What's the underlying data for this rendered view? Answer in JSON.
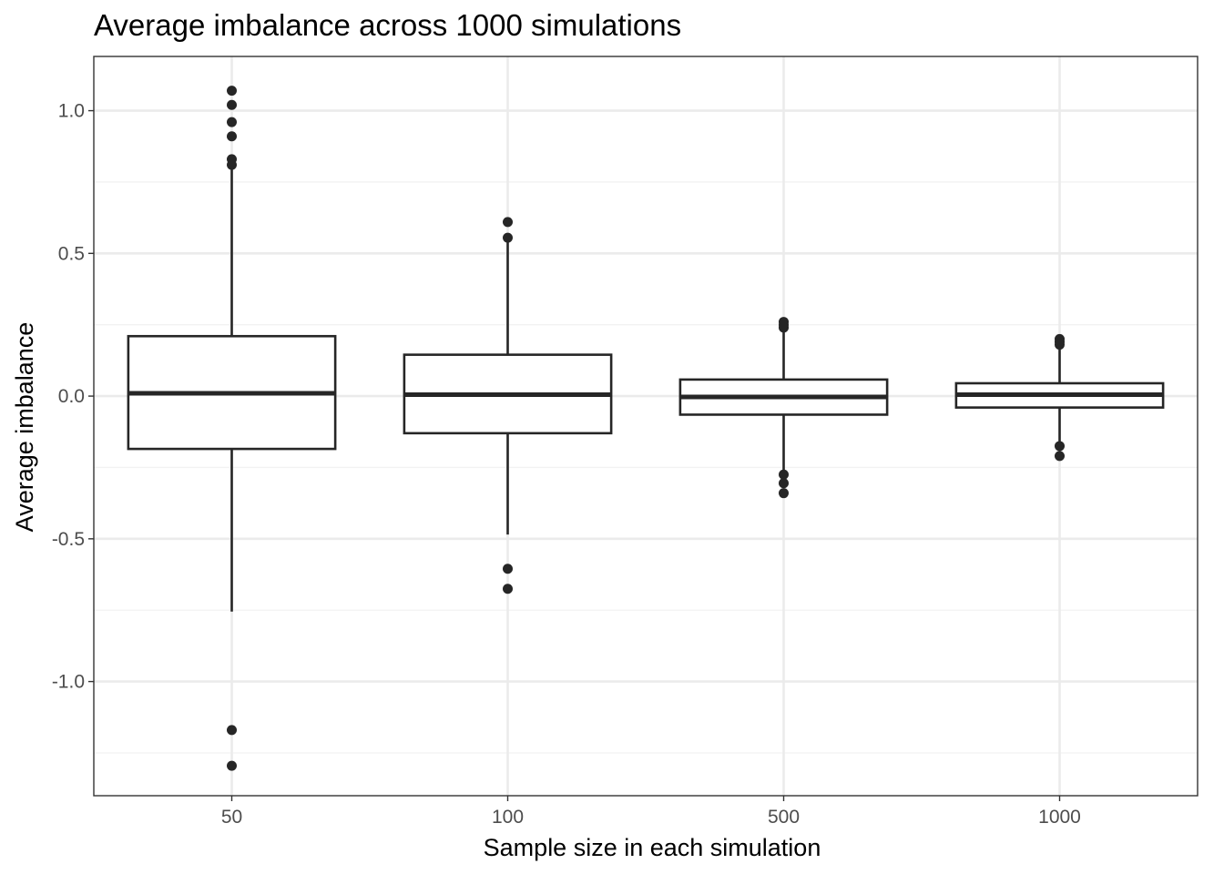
{
  "chart_data": {
    "type": "box",
    "title": "Average imbalance across 1000 simulations",
    "xlabel": "Sample size in each simulation",
    "ylabel": "Average imbalance",
    "categories": [
      "50",
      "100",
      "500",
      "1000"
    ],
    "ylim": [
      -1.4,
      1.19
    ],
    "yticks": [
      1.0,
      0.5,
      0.0,
      -0.5,
      -1.0
    ],
    "ytick_labels": [
      "1.0",
      "0.5",
      "0.0",
      "-0.5",
      "-1.0"
    ],
    "grid": true,
    "colors": {
      "box_stroke": "#262626",
      "grid_major": "#ebebeb",
      "grid_minor": "#f2f2f2",
      "panel_border": "#333333",
      "background": "#ffffff"
    },
    "boxes": [
      {
        "category": "50",
        "q1": -0.185,
        "median": 0.01,
        "q3": 0.21,
        "whisker_low": -0.755,
        "whisker_high": 0.8,
        "outliers": [
          1.07,
          1.02,
          0.96,
          0.91,
          0.83,
          0.81,
          -1.17,
          -1.295
        ]
      },
      {
        "category": "100",
        "q1": -0.13,
        "median": 0.005,
        "q3": 0.145,
        "whisker_low": -0.485,
        "whisker_high": 0.545,
        "outliers": [
          0.61,
          0.555,
          -0.605,
          -0.675
        ]
      },
      {
        "category": "500",
        "q1": -0.065,
        "median": -0.003,
        "q3": 0.058,
        "whisker_low": -0.27,
        "whisker_high": 0.235,
        "outliers": [
          0.26,
          0.25,
          0.24,
          -0.275,
          -0.305,
          -0.34
        ]
      },
      {
        "category": "1000",
        "q1": -0.04,
        "median": 0.005,
        "q3": 0.045,
        "whisker_low": -0.165,
        "whisker_high": 0.17,
        "outliers": [
          0.2,
          0.19,
          0.18,
          -0.175,
          -0.21
        ]
      }
    ]
  }
}
